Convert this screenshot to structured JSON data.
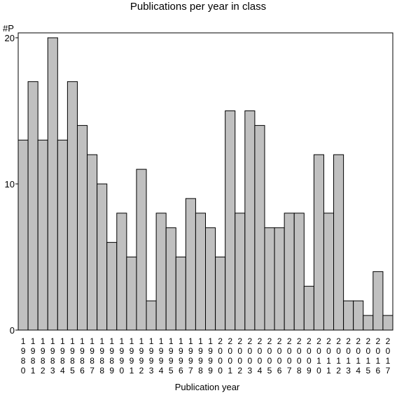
{
  "chart_data": {
    "type": "bar",
    "title": "Publications per year in class",
    "xlabel": "Publication year",
    "ylabel": "#P",
    "ylim": [
      0,
      20
    ],
    "yticks": [
      0,
      10,
      20
    ],
    "grid": false,
    "legend": "none",
    "colors": {
      "bar_fill": "#c0c0c0",
      "bar_stroke": "#000000",
      "axis": "#000000",
      "background": "#ffffff"
    },
    "categories": [
      "1980",
      "1981",
      "1982",
      "1983",
      "1984",
      "1985",
      "1986",
      "1987",
      "1988",
      "1989",
      "1990",
      "1991",
      "1992",
      "1993",
      "1994",
      "1995",
      "1996",
      "1997",
      "1998",
      "1999",
      "2000",
      "2001",
      "2002",
      "2003",
      "2004",
      "2005",
      "2006",
      "2007",
      "2008",
      "2009",
      "2010",
      "2011",
      "2012",
      "2013",
      "2014",
      "2015",
      "2016",
      "2017"
    ],
    "values": [
      13,
      17,
      13,
      20,
      13,
      17,
      14,
      12,
      10,
      6,
      8,
      5,
      11,
      2,
      8,
      7,
      5,
      9,
      8,
      7,
      5,
      15,
      8,
      15,
      14,
      7,
      7,
      8,
      8,
      3,
      12,
      8,
      12,
      2,
      2,
      1,
      4,
      1
    ]
  }
}
